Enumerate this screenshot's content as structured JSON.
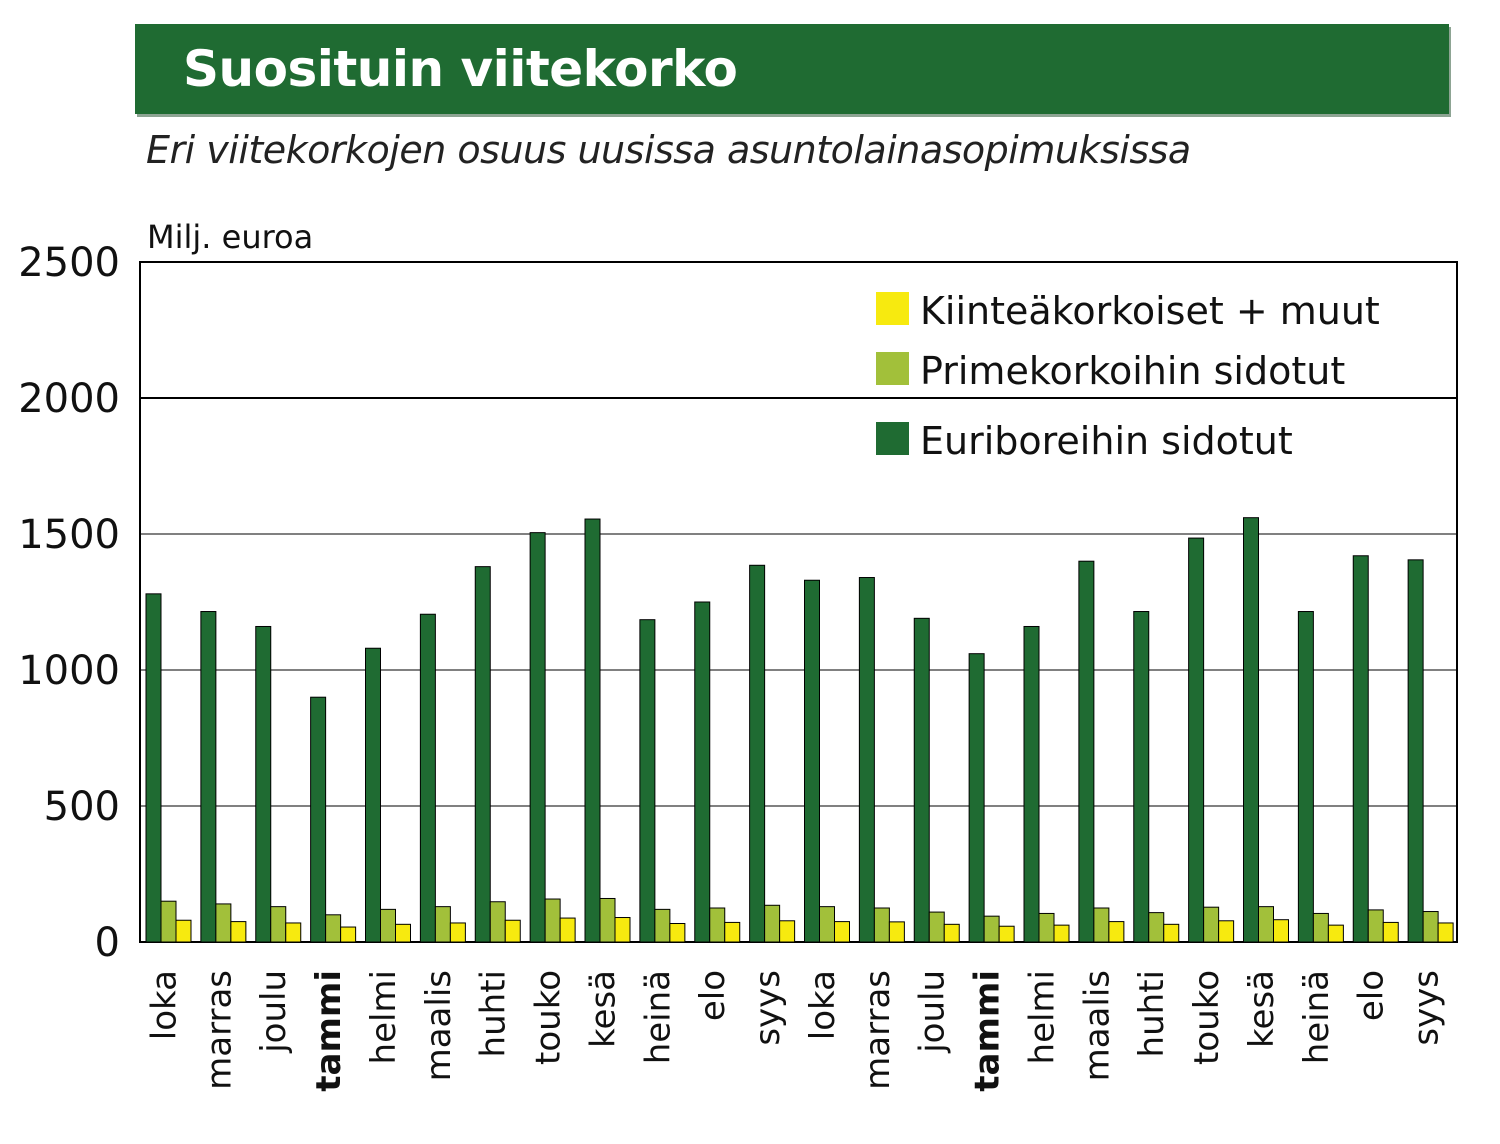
{
  "chart_data": {
    "type": "bar",
    "title": "Suosituin viitekorko",
    "subtitle": "Eri viitekorkojen osuus uusissa asuntolainasopimuksissa",
    "ylabel": "Milj. euroa",
    "xlabel": "",
    "ylim": [
      0,
      2500
    ],
    "yticks": [
      0,
      500,
      1000,
      1500,
      2000,
      2500
    ],
    "grid": true,
    "legend_position": "top-right",
    "categories": [
      "loka",
      "marras",
      "joulu",
      "tammi",
      "helmi",
      "maalis",
      "huhti",
      "touko",
      "kesä",
      "heinä",
      "elo",
      "syys",
      "loka",
      "marras",
      "joulu",
      "tammi",
      "helmi",
      "maalis",
      "huhti",
      "touko",
      "kesä",
      "heinä",
      "elo",
      "syys"
    ],
    "bold_categories": [
      3,
      15
    ],
    "series": [
      {
        "name": "Euriboreihin sidotut",
        "color": "#1f6b32",
        "values": [
          1280,
          1215,
          1160,
          900,
          1080,
          1205,
          1380,
          1505,
          1555,
          1185,
          1250,
          1385,
          1330,
          1340,
          1190,
          1060,
          1160,
          1400,
          1215,
          1485,
          1560,
          1215,
          1420,
          1405
        ]
      },
      {
        "name": "Primekorkoihin sidotut",
        "color": "#a2c03a",
        "values": [
          150,
          140,
          130,
          100,
          120,
          130,
          148,
          158,
          160,
          120,
          125,
          135,
          130,
          125,
          110,
          95,
          105,
          125,
          108,
          128,
          130,
          105,
          118,
          112
        ]
      },
      {
        "name": "Kiinteäkorkoiset + muut",
        "color": "#f7ea0f",
        "values": [
          80,
          75,
          70,
          55,
          65,
          70,
          80,
          88,
          90,
          68,
          72,
          78,
          75,
          74,
          65,
          58,
          62,
          75,
          65,
          78,
          82,
          62,
          72,
          70
        ]
      }
    ],
    "legend_order": [
      "Kiinteäkorkoiset + muut",
      "Primekorkoihin sidotut",
      "Euriboreihin sidotut"
    ]
  }
}
